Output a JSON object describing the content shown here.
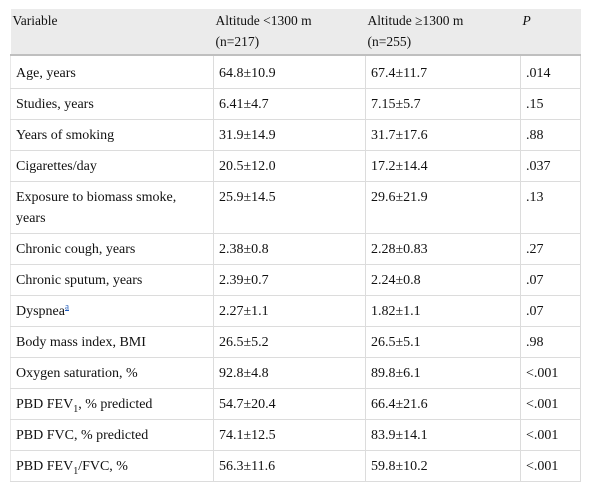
{
  "header": {
    "variable": "Variable",
    "low_altitude_line1": "Altitude <1300 m",
    "low_altitude_line2": "(n=217)",
    "high_altitude_line1": "Altitude ≥1300 m",
    "high_altitude_line2": "(n=255)",
    "p": "P"
  },
  "rows": [
    {
      "variable": "Age, years",
      "low": "64.8±10.9",
      "high": "67.4±11.7",
      "p": ".014"
    },
    {
      "variable": "Studies, years",
      "low": "6.41±4.7",
      "high": "7.15±5.7",
      "p": ".15"
    },
    {
      "variable": "Years of smoking",
      "low": "31.9±14.9",
      "high": "31.7±17.6",
      "p": ".88"
    },
    {
      "variable": "Cigarettes/day",
      "low": "20.5±12.0",
      "high": "17.2±14.4",
      "p": ".037"
    },
    {
      "variable": "Exposure to biomass smoke, years",
      "low": "25.9±14.5",
      "high": "29.6±21.9",
      "p": ".13"
    },
    {
      "variable": "Chronic cough, years",
      "low": "2.38±0.8",
      "high": "2.28±0.83",
      "p": ".27"
    },
    {
      "variable": "Chronic sputum, years",
      "low": "2.39±0.7",
      "high": "2.24±0.8",
      "p": ".07"
    },
    {
      "variable": "Dyspnea",
      "footnote": "a",
      "low": "2.27±1.1",
      "high": "1.82±1.1",
      "p": ".07"
    },
    {
      "variable": "Body mass index, BMI",
      "low": "26.5±5.2",
      "high": "26.5±5.1",
      "p": ".98"
    },
    {
      "variable": "Oxygen saturation, %",
      "low": "92.8±4.8",
      "high": "89.8±6.1",
      "p": "<.001"
    },
    {
      "variable_pre": "PBD FEV",
      "variable_sub": "1",
      "variable_post": ", % predicted",
      "low": "54.7±20.4",
      "high": "66.4±21.6",
      "p": "<.001"
    },
    {
      "variable": "PBD FVC, % predicted",
      "low": "74.1±12.5",
      "high": "83.9±14.1",
      "p": "<.001"
    },
    {
      "variable_pre": "PBD FEV",
      "variable_sub": "1",
      "variable_post": "/FVC, %",
      "low": "56.3±11.6",
      "high": "59.8±10.2",
      "p": "<.001"
    }
  ]
}
